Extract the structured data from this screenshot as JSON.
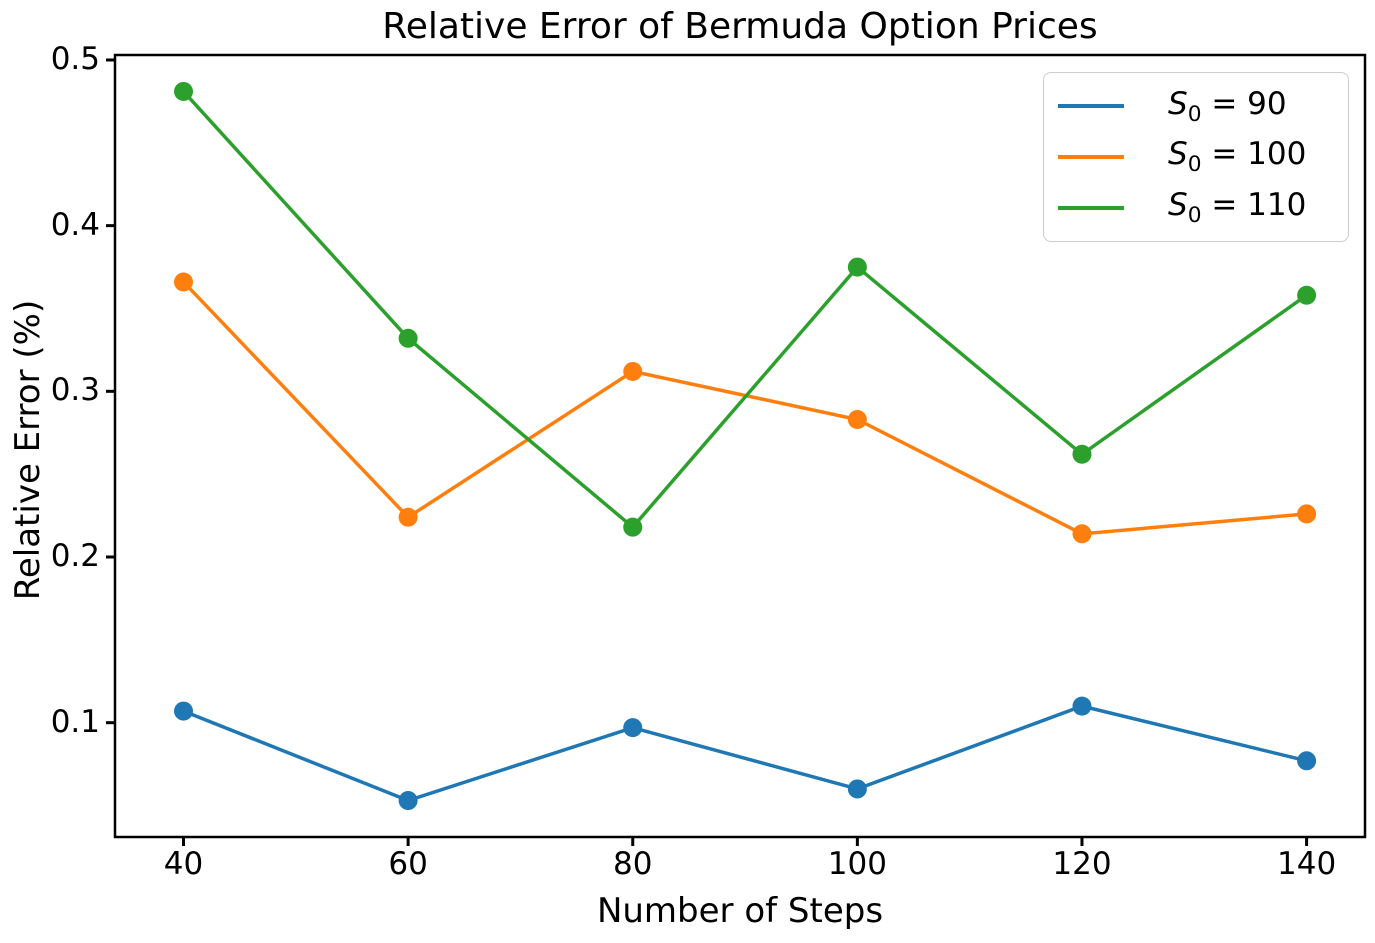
{
  "chart_data": {
    "type": "line",
    "title": "Relative Error of Bermuda Option Prices",
    "xlabel": "Number of Steps",
    "ylabel": "Relative Error (%)",
    "x": [
      40,
      60,
      80,
      100,
      120,
      140
    ],
    "series": [
      {
        "name": "S₀ = 90",
        "legend": {
          "symbol": "S",
          "subscript": "0",
          "rest": " = 90"
        },
        "color": "#1f77b4",
        "values": [
          0.107,
          0.053,
          0.097,
          0.06,
          0.11,
          0.077
        ]
      },
      {
        "name": "S₀ = 100",
        "legend": {
          "symbol": "S",
          "subscript": "0",
          "rest": " = 100"
        },
        "color": "#ff7f0e",
        "values": [
          0.366,
          0.224,
          0.312,
          0.283,
          0.214,
          0.226
        ]
      },
      {
        "name": "S₀ = 110",
        "legend": {
          "symbol": "S",
          "subscript": "0",
          "rest": " = 110"
        },
        "color": "#2ca02c",
        "values": [
          0.481,
          0.332,
          0.218,
          0.375,
          0.262,
          0.358
        ]
      }
    ],
    "xticks": [
      40,
      60,
      80,
      100,
      120,
      140
    ],
    "yticks": [
      0.1,
      0.2,
      0.3,
      0.4,
      0.5
    ],
    "xlim": [
      33.9,
      145.2
    ],
    "ylim": [
      0.031,
      0.503
    ],
    "grid": false,
    "legend_position": "upper right",
    "marker": "o",
    "axis_color": "#000000"
  }
}
